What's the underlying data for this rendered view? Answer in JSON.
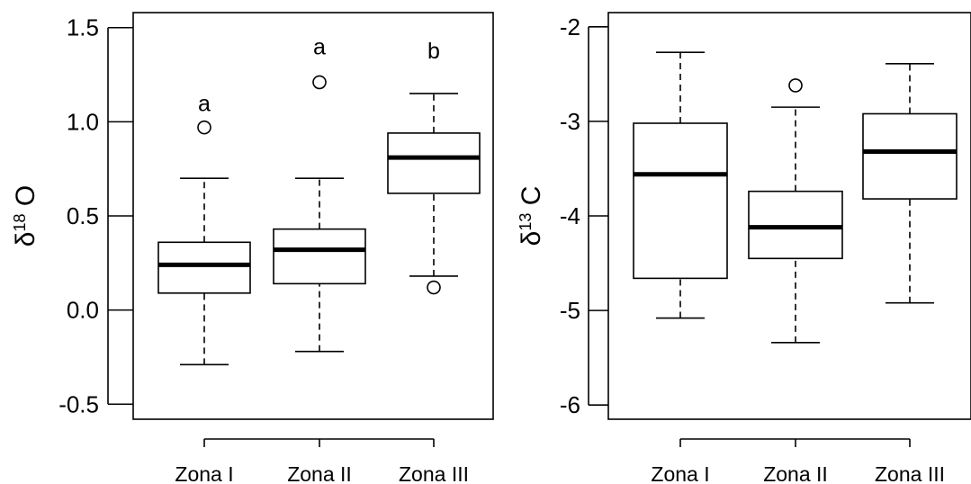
{
  "chart_data": [
    {
      "type": "box",
      "ylabel": {
        "symbol": "δ",
        "sup": "18",
        "element": "O"
      },
      "ylim": [
        -0.58,
        1.58
      ],
      "yticks": [
        -0.5,
        0.0,
        0.5,
        1.0,
        1.5
      ],
      "ytick_labels": [
        "-0.5",
        "0.0",
        "0.5",
        "1.0",
        "1.5"
      ],
      "categories": [
        "Zona I",
        "Zona II",
        "Zona III"
      ],
      "boxes": [
        {
          "category": "Zona I",
          "whisker_low": -0.29,
          "q1": 0.09,
          "median": 0.24,
          "q3": 0.36,
          "whisker_high": 0.7,
          "outliers": [
            0.97
          ]
        },
        {
          "category": "Zona II",
          "whisker_low": -0.22,
          "q1": 0.14,
          "median": 0.32,
          "q3": 0.43,
          "whisker_high": 0.7,
          "outliers": [
            1.21
          ]
        },
        {
          "category": "Zona III",
          "whisker_low": 0.18,
          "q1": 0.62,
          "median": 0.81,
          "q3": 0.94,
          "whisker_high": 1.15,
          "outliers": [
            0.12
          ]
        }
      ],
      "annotations": [
        {
          "category": "Zona I",
          "text": "a",
          "y": 1.1
        },
        {
          "category": "Zona II",
          "text": "a",
          "y": 1.4
        },
        {
          "category": "Zona III",
          "text": "b",
          "y": 1.38
        }
      ]
    },
    {
      "type": "box",
      "ylabel": {
        "symbol": "δ",
        "sup": "13",
        "element": "C"
      },
      "ylim": [
        -6.15,
        -1.85
      ],
      "yticks": [
        -6,
        -5,
        -4,
        -3,
        -2
      ],
      "ytick_labels": [
        "-6",
        "-5",
        "-4",
        "-3",
        "-2"
      ],
      "categories": [
        "Zona I",
        "Zona II",
        "Zona III"
      ],
      "boxes": [
        {
          "category": "Zona I",
          "whisker_low": -5.08,
          "q1": -4.66,
          "median": -3.56,
          "q3": -3.02,
          "whisker_high": -2.27,
          "outliers": []
        },
        {
          "category": "Zona II",
          "whisker_low": -5.34,
          "q1": -4.45,
          "median": -4.12,
          "q3": -3.74,
          "whisker_high": -2.85,
          "outliers": [
            -2.62
          ]
        },
        {
          "category": "Zona III",
          "whisker_low": -4.92,
          "q1": -3.82,
          "median": -3.32,
          "q3": -2.92,
          "whisker_high": -2.39,
          "outliers": []
        }
      ],
      "annotations": []
    }
  ]
}
